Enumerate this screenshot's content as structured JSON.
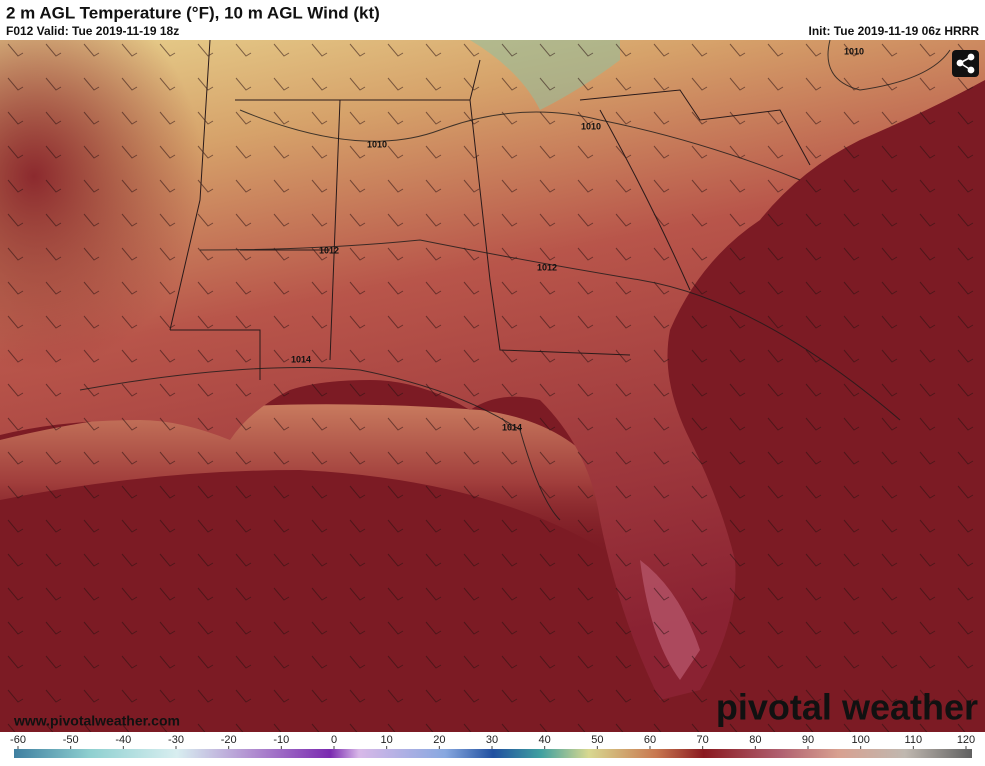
{
  "header": {
    "title": "2 m AGL Temperature (°F), 10 m AGL Wind (kt)",
    "valid": "F012 Valid: Tue 2019-11-19 18z",
    "init": "Init: Tue 2019-11-19 06z HRRR"
  },
  "map": {
    "isobar_labels": [
      "1010",
      "1010",
      "1010",
      "1012",
      "1012",
      "1014",
      "1014"
    ],
    "site_url": "www.pivotalweather.com",
    "watermark": "pivotal weather"
  },
  "colorbar": {
    "ticks": [
      -60,
      -50,
      -40,
      -30,
      -20,
      -10,
      0,
      10,
      20,
      30,
      40,
      50,
      60,
      70,
      80,
      90,
      100,
      110,
      120
    ]
  }
}
